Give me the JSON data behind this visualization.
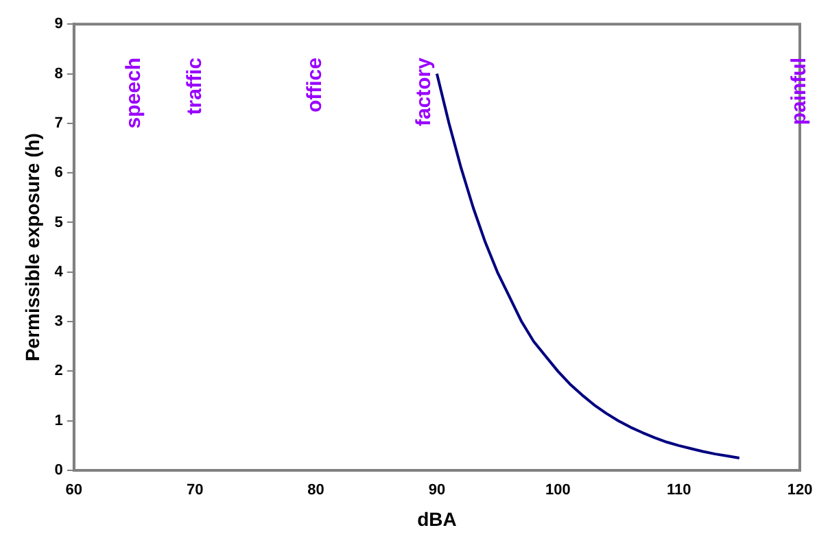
{
  "chart_data": {
    "type": "line",
    "xlabel": "dBA",
    "ylabel": "Permissible exposure (h)",
    "series": [
      {
        "color": "#000080",
        "x": [
          90,
          91,
          92,
          93,
          94,
          95,
          96,
          97,
          98,
          99,
          100,
          101,
          102,
          103,
          104,
          105,
          106,
          107,
          108,
          109,
          110,
          111,
          112,
          113,
          114,
          115
        ],
        "values": [
          8,
          7,
          6.1,
          5.3,
          4.6,
          4,
          3.5,
          3,
          2.6,
          2.3,
          2,
          1.74,
          1.52,
          1.32,
          1.15,
          1,
          0.87,
          0.76,
          0.66,
          0.57,
          0.5,
          0.44,
          0.38,
          0.33,
          0.29,
          0.25
        ]
      }
    ],
    "xlim": [
      60,
      120
    ],
    "xticks": [
      60,
      70,
      80,
      90,
      100,
      110,
      120
    ],
    "ylim": [
      0,
      9
    ],
    "yticks": [
      0,
      1,
      2,
      3,
      4,
      5,
      6,
      7,
      8,
      9
    ],
    "grid": false,
    "legend": false,
    "marker": "none",
    "line_style": "solid",
    "annotations": [
      "speech",
      "traffic",
      "office",
      "factory",
      "painful"
    ]
  }
}
